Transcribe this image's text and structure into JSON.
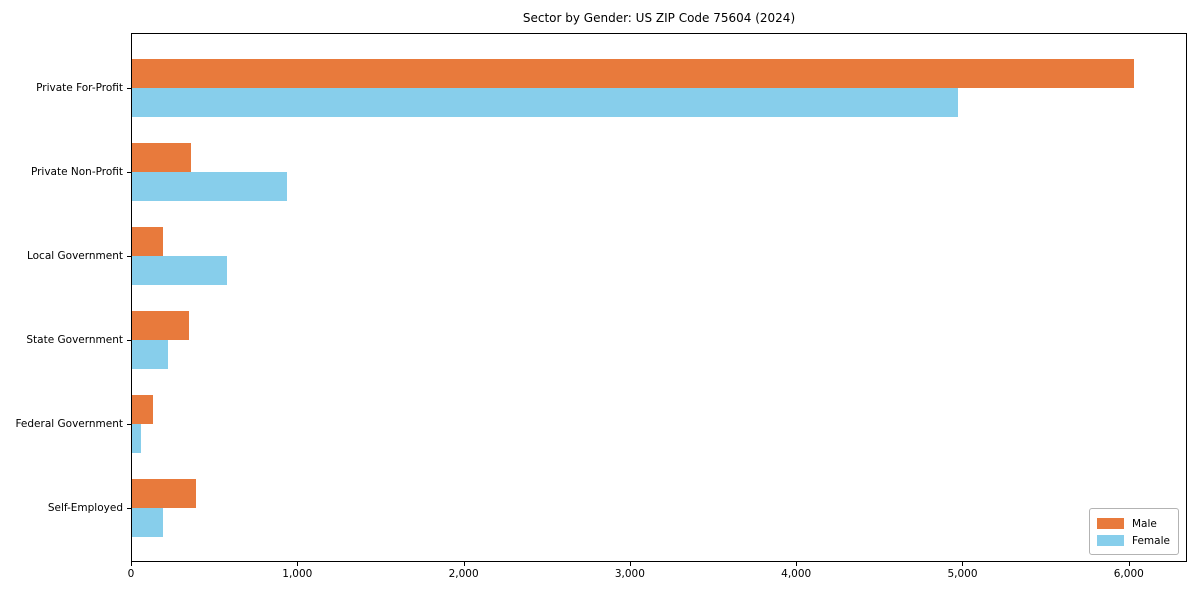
{
  "chart_data": {
    "type": "bar",
    "orientation": "horizontal",
    "title": "Sector by Gender: US ZIP Code 75604 (2024)",
    "categories": [
      "Private For-Profit",
      "Private Non-Profit",
      "Local Government",
      "State Government",
      "Federal Government",
      "Self-Employed"
    ],
    "series": [
      {
        "name": "Male",
        "color": "#e87a3c",
        "values": [
          6030,
          360,
          190,
          350,
          130,
          390
        ]
      },
      {
        "name": "Female",
        "color": "#87ceeb",
        "values": [
          4970,
          940,
          580,
          220,
          60,
          190
        ]
      }
    ],
    "xlabel": "",
    "ylabel": "",
    "xlim": [
      0,
      6350
    ],
    "xticks": [
      0,
      1000,
      2000,
      3000,
      4000,
      5000,
      6000
    ],
    "xtick_labels": [
      "0",
      "1,000",
      "2,000",
      "3,000",
      "4,000",
      "5,000",
      "6,000"
    ],
    "legend": {
      "position": "lower right",
      "labels": [
        "Male",
        "Female"
      ]
    },
    "grid": false
  }
}
